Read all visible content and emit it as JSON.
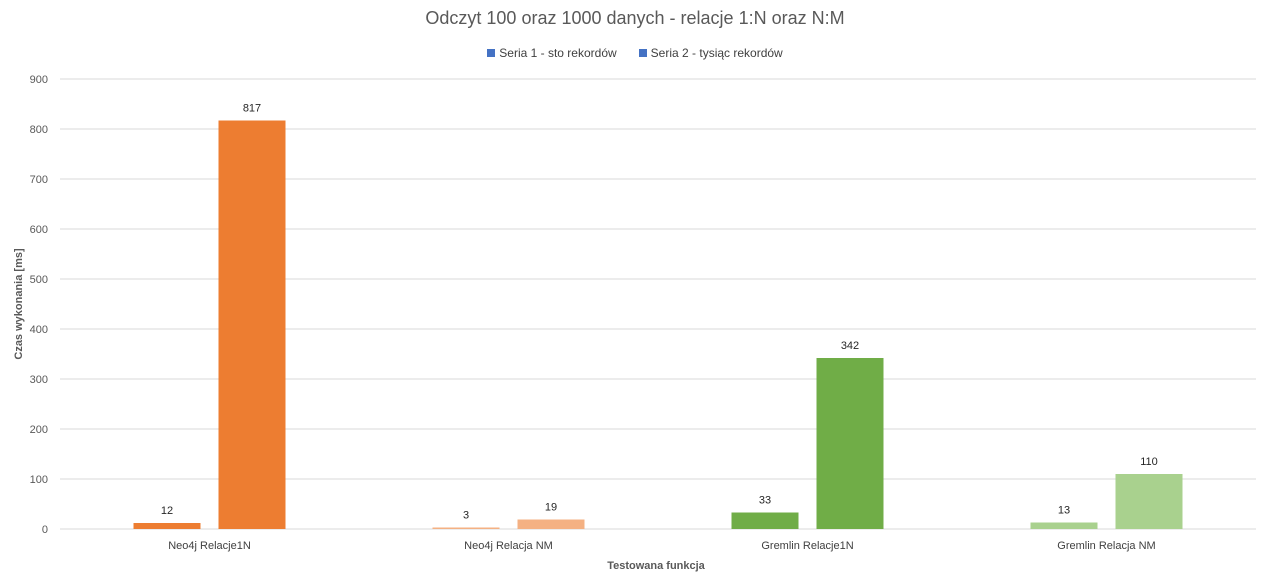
{
  "chart_data": {
    "type": "bar",
    "title": "Odczyt 100 oraz 1000  danych - relacje 1:N oraz N:M",
    "xlabel": "Testowana funkcja",
    "ylabel": "Czas wykonania [ms]",
    "ylim": [
      0,
      900
    ],
    "yticks": [
      0,
      100,
      200,
      300,
      400,
      500,
      600,
      700,
      800,
      900
    ],
    "grid": true,
    "legend_position": "top",
    "categories": [
      "Neo4j Relacje1N",
      "Neo4j Relacja NM",
      "Gremlin Relacje1N",
      "Gremlin Relacja NM"
    ],
    "series": [
      {
        "name": "Seria 1 - sto rekordów",
        "values": [
          12,
          3,
          33,
          13
        ]
      },
      {
        "name": "Seria 2 - tysiąc rekordów",
        "values": [
          817,
          19,
          342,
          110
        ]
      }
    ],
    "legend_colors": [
      "#4472c4",
      "#4472c4"
    ],
    "bar_colors": [
      [
        "#ed7d31",
        "#ed7d31"
      ],
      [
        "#f4b183",
        "#f4b183"
      ],
      [
        "#70ad47",
        "#70ad47"
      ],
      [
        "#a9d18e",
        "#a9d18e"
      ]
    ]
  }
}
